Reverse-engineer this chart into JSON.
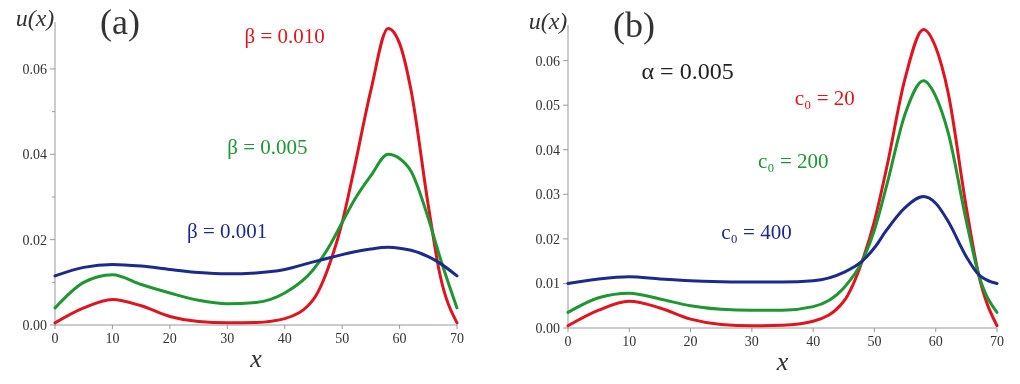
{
  "chart_data": [
    {
      "type": "line",
      "title": "(a)",
      "xlabel": "x",
      "ylabel": "u(x)",
      "xlim": [
        0,
        70
      ],
      "xticks": [
        0,
        10,
        20,
        30,
        40,
        50,
        60,
        70
      ],
      "ylim": [
        0,
        0.071
      ],
      "yticks": [
        {
          "value": 0,
          "label": "0.00"
        },
        {
          "value": 0.01,
          "label": null
        },
        {
          "value": 0.02,
          "label": "0.02"
        },
        {
          "value": 0.03,
          "label": null
        },
        {
          "value": 0.04,
          "label": "0.04"
        },
        {
          "value": 0.05,
          "label": null
        },
        {
          "value": 0.06,
          "label": "0.06"
        }
      ],
      "grid": false,
      "x": [
        0,
        5,
        10,
        15,
        20,
        25,
        30,
        35,
        40,
        45,
        48,
        50,
        52,
        55,
        58,
        60,
        62,
        65,
        67,
        70
      ],
      "series": [
        {
          "name": "β = 0.010",
          "color": "#e0141e",
          "values": [
            0.0005,
            0.004,
            0.006,
            0.0045,
            0.002,
            0.0008,
            0.0005,
            0.0006,
            0.0015,
            0.006,
            0.015,
            0.024,
            0.036,
            0.055,
            0.0695,
            0.066,
            0.055,
            0.028,
            0.012,
            0.0005
          ]
        },
        {
          "name": "β = 0.005",
          "color": "#1e9632",
          "values": [
            0.004,
            0.01,
            0.0118,
            0.0095,
            0.0075,
            0.0058,
            0.005,
            0.0053,
            0.0075,
            0.013,
            0.019,
            0.024,
            0.029,
            0.035,
            0.04,
            0.039,
            0.036,
            0.025,
            0.016,
            0.004
          ]
        },
        {
          "name": "β = 0.001",
          "color": "#1c2a8c",
          "values": [
            0.0115,
            0.0135,
            0.0142,
            0.0138,
            0.013,
            0.0123,
            0.012,
            0.0122,
            0.013,
            0.0148,
            0.0158,
            0.0165,
            0.0171,
            0.0178,
            0.0182,
            0.018,
            0.0175,
            0.016,
            0.0145,
            0.0115
          ]
        }
      ]
    },
    {
      "type": "line",
      "title": "(b)",
      "xlabel": "x",
      "ylabel": "u(x)",
      "annotations": [
        "α = 0.005"
      ],
      "xlim": [
        0,
        70
      ],
      "xticks": [
        0,
        10,
        20,
        30,
        40,
        50,
        60,
        70
      ],
      "ylim": [
        0,
        0.068
      ],
      "yticks": [
        {
          "value": 0,
          "label": "0.00"
        },
        {
          "value": 0.01,
          "label": "0.01"
        },
        {
          "value": 0.02,
          "label": "0.02"
        },
        {
          "value": 0.03,
          "label": "0.03"
        },
        {
          "value": 0.04,
          "label": "0.04"
        },
        {
          "value": 0.05,
          "label": "0.05"
        },
        {
          "value": 0.06,
          "label": "0.06"
        }
      ],
      "grid": false,
      "x": [
        0,
        5,
        10,
        15,
        20,
        25,
        30,
        35,
        40,
        45,
        48,
        50,
        52,
        55,
        58,
        60,
        62,
        65,
        67,
        70
      ],
      "series": [
        {
          "name": "c₀ = 20",
          "color": "#e0141e",
          "values": [
            0.0005,
            0.004,
            0.006,
            0.0045,
            0.002,
            0.0008,
            0.0005,
            0.0006,
            0.0015,
            0.006,
            0.015,
            0.024,
            0.036,
            0.056,
            0.067,
            0.063,
            0.053,
            0.027,
            0.012,
            0.0005
          ]
        },
        {
          "name": "c₀ = 200",
          "color": "#1e9632",
          "values": [
            0.0035,
            0.0068,
            0.0078,
            0.0065,
            0.005,
            0.0042,
            0.004,
            0.004,
            0.0048,
            0.009,
            0.015,
            0.022,
            0.032,
            0.048,
            0.0555,
            0.052,
            0.044,
            0.024,
            0.012,
            0.0035
          ]
        },
        {
          "name": "c₀ = 400",
          "color": "#1c2a8c",
          "values": [
            0.01,
            0.011,
            0.0115,
            0.011,
            0.0106,
            0.0104,
            0.0103,
            0.0103,
            0.0106,
            0.0125,
            0.015,
            0.018,
            0.022,
            0.027,
            0.0295,
            0.028,
            0.024,
            0.016,
            0.012,
            0.01
          ]
        }
      ]
    }
  ]
}
